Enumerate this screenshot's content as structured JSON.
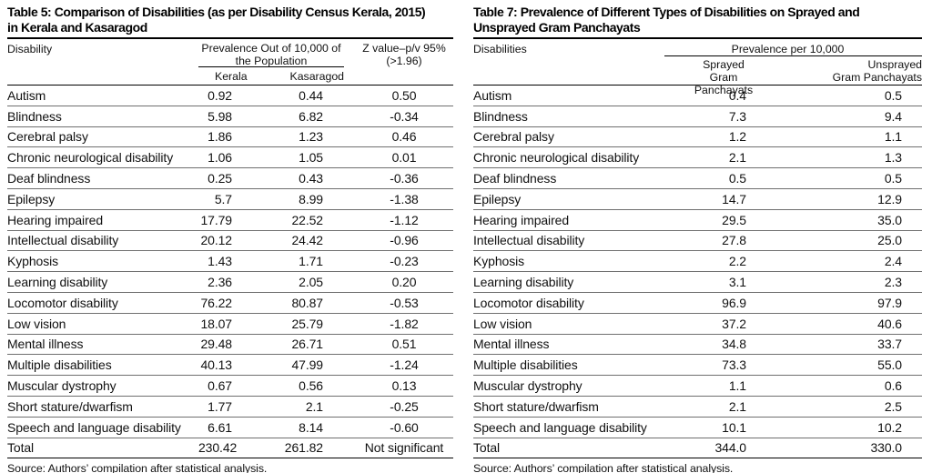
{
  "colors": {
    "background": "#ffffff",
    "text": "#111111",
    "rule_dark": "#000000",
    "rule_light": "#6f6f6f"
  },
  "table5": {
    "title_line1": "Table 5: Comparison of Disabilities (as per Disability Census Kerala, 2015)",
    "title_line2": "in Kerala and Kasaragod",
    "header": {
      "disability": "Disability",
      "group_line1": "Prevalence Out of 10,000 of",
      "group_line2": "the Population",
      "sub_kerala": "Kerala",
      "sub_kasaragod": "Kasaragod",
      "z_line1": "Z value–p/v 95%",
      "z_line2": "(>1.96)"
    },
    "rows": [
      {
        "label": "Autism",
        "kerala": "0.92",
        "kasaragod": "0.44",
        "z": "0.50"
      },
      {
        "label": "Blindness",
        "kerala": "5.98",
        "kasaragod": "6.82",
        "z": "-0.34"
      },
      {
        "label": "Cerebral palsy",
        "kerala": "1.86",
        "kasaragod": "1.23",
        "z": "0.46"
      },
      {
        "label": "Chronic neurological disability",
        "kerala": "1.06",
        "kasaragod": "1.05",
        "z": "0.01"
      },
      {
        "label": "Deaf blindness",
        "kerala": "0.25",
        "kasaragod": "0.43",
        "z": "-0.36"
      },
      {
        "label": "Epilepsy",
        "kerala": "5.7",
        "kasaragod": "8.99",
        "z": "-1.38"
      },
      {
        "label": "Hearing impaired",
        "kerala": "17.79",
        "kasaragod": "22.52",
        "z": "-1.12"
      },
      {
        "label": "Intellectual disability",
        "kerala": "20.12",
        "kasaragod": "24.42",
        "z": "-0.96"
      },
      {
        "label": "Kyphosis",
        "kerala": "1.43",
        "kasaragod": "1.71",
        "z": "-0.23"
      },
      {
        "label": "Learning disability",
        "kerala": "2.36",
        "kasaragod": "2.05",
        "z": "0.20"
      },
      {
        "label": "Locomotor disability",
        "kerala": "76.22",
        "kasaragod": "80.87",
        "z": "-0.53"
      },
      {
        "label": "Low vision",
        "kerala": "18.07",
        "kasaragod": "25.79",
        "z": "-1.82"
      },
      {
        "label": "Mental illness",
        "kerala": "29.48",
        "kasaragod": "26.71",
        "z": "0.51"
      },
      {
        "label": "Multiple disabilities",
        "kerala": "40.13",
        "kasaragod": "47.99",
        "z": "-1.24"
      },
      {
        "label": "Muscular dystrophy",
        "kerala": "0.67",
        "kasaragod": "0.56",
        "z": "0.13"
      },
      {
        "label": "Short stature/dwarfism",
        "kerala": "1.77",
        "kasaragod": "2.1",
        "z": "-0.25"
      },
      {
        "label": "Speech and language disability",
        "kerala": "6.61",
        "kasaragod": "8.14",
        "z": "-0.60"
      }
    ],
    "total_row": {
      "label": "Total",
      "kerala": "230.42",
      "kasaragod": "261.82",
      "z": "Not significant"
    },
    "source": "Source: Authors’ compilation after statistical analysis."
  },
  "table7": {
    "title_line1": "Table 7: Prevalence of Different Types of Disabilities on Sprayed and",
    "title_line2": "Unsprayed Gram Panchayats",
    "header": {
      "disabilities": "Disabilities",
      "group": "Prevalence per 10,000",
      "sub_sprayed_line1": "Sprayed",
      "sub_sprayed_line2": "Gram Panchayats",
      "sub_unsprayed_line1": "Unsprayed",
      "sub_unsprayed_line2": "Gram Panchayats"
    },
    "rows": [
      {
        "label": "Autism",
        "sprayed": "0.4",
        "unsprayed": "0.5"
      },
      {
        "label": "Blindness",
        "sprayed": "7.3",
        "unsprayed": "9.4"
      },
      {
        "label": "Cerebral palsy",
        "sprayed": "1.2",
        "unsprayed": "1.1"
      },
      {
        "label": "Chronic neurological disability",
        "sprayed": "2.1",
        "unsprayed": "1.3"
      },
      {
        "label": "Deaf blindness",
        "sprayed": "0.5",
        "unsprayed": "0.5"
      },
      {
        "label": "Epilepsy",
        "sprayed": "14.7",
        "unsprayed": "12.9"
      },
      {
        "label": "Hearing impaired",
        "sprayed": "29.5",
        "unsprayed": "35.0"
      },
      {
        "label": "Intellectual disability",
        "sprayed": "27.8",
        "unsprayed": "25.0"
      },
      {
        "label": "Kyphosis",
        "sprayed": "2.2",
        "unsprayed": "2.4"
      },
      {
        "label": "Learning disability",
        "sprayed": "3.1",
        "unsprayed": "2.3"
      },
      {
        "label": "Locomotor disability",
        "sprayed": "96.9",
        "unsprayed": "97.9"
      },
      {
        "label": "Low vision",
        "sprayed": "37.2",
        "unsprayed": "40.6"
      },
      {
        "label": "Mental illness",
        "sprayed": "34.8",
        "unsprayed": "33.7"
      },
      {
        "label": "Multiple disabilities",
        "sprayed": "73.3",
        "unsprayed": "55.0"
      },
      {
        "label": "Muscular dystrophy",
        "sprayed": "1.1",
        "unsprayed": "0.6"
      },
      {
        "label": "Short stature/dwarfism",
        "sprayed": "2.1",
        "unsprayed": "2.5"
      },
      {
        "label": "Speech and language disability",
        "sprayed": "10.1",
        "unsprayed": "10.2"
      }
    ],
    "total_row": {
      "label": "Total",
      "sprayed": "344.0",
      "unsprayed": "330.0"
    },
    "source": "Source: Authors’ compilation after statistical analysis."
  }
}
